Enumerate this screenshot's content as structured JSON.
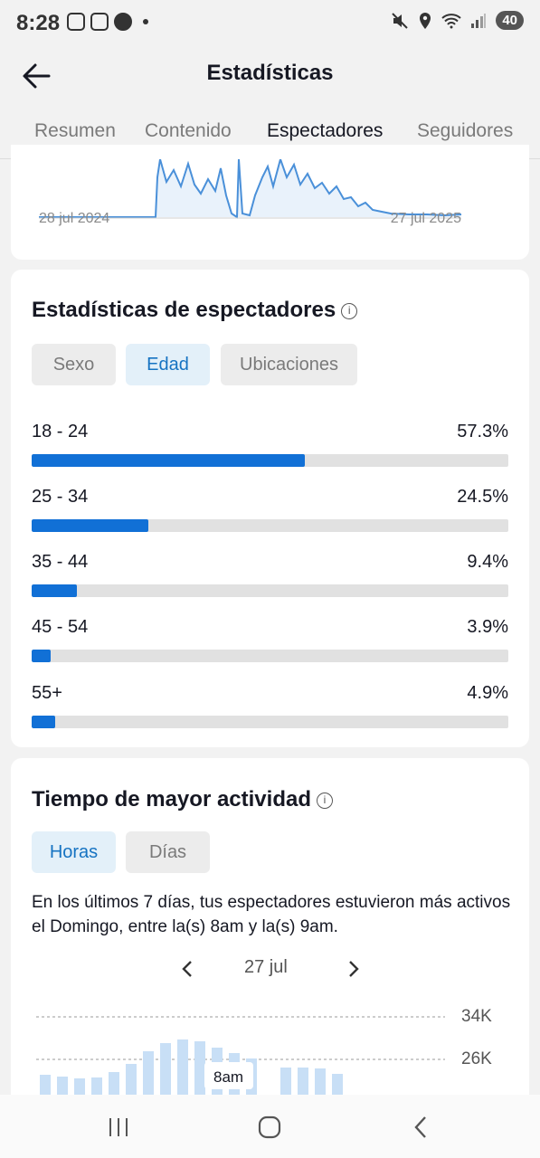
{
  "status_bar": {
    "time": "8:28",
    "battery": "40"
  },
  "header": {
    "title": "Estadísticas"
  },
  "tabs": [
    {
      "label": "Resumen",
      "active": false
    },
    {
      "label": "Contenido",
      "active": false
    },
    {
      "label": "Espectadores",
      "active": true
    },
    {
      "label": "Seguidores",
      "active": false
    }
  ],
  "trend_card": {
    "start_date": "28 jul 2024",
    "end_date": "27 jul 2025"
  },
  "viewer_stats": {
    "title": "Estadísticas de espectadores",
    "filters": [
      {
        "label": "Sexo",
        "active": false
      },
      {
        "label": "Edad",
        "active": true
      },
      {
        "label": "Ubicaciones",
        "active": false
      }
    ],
    "age_groups": [
      {
        "label": "18 - 24",
        "percent_text": "57.3%",
        "value": 57.3
      },
      {
        "label": "25 - 34",
        "percent_text": "24.5%",
        "value": 24.5
      },
      {
        "label": "35 - 44",
        "percent_text": "9.4%",
        "value": 9.4
      },
      {
        "label": "45 - 54",
        "percent_text": "3.9%",
        "value": 3.9
      },
      {
        "label": "55+",
        "percent_text": "4.9%",
        "value": 4.9
      }
    ]
  },
  "activity": {
    "title": "Tiempo de mayor actividad",
    "filters": [
      {
        "label": "Horas",
        "active": true
      },
      {
        "label": "Días",
        "active": false
      }
    ],
    "description": "En los últimos 7 días, tus espectadores estuvieron más activos el Domingo, entre la(s) 8am y la(s) 9am.",
    "date": "27 jul",
    "y_ticks": [
      "34K",
      "26K"
    ],
    "highlight_label": "8am"
  },
  "colors": {
    "accent": "#1170d6",
    "chip_active_text": "#1673c2",
    "chart_line": "#4a90d9",
    "bar_light": "#c8dff6"
  }
}
